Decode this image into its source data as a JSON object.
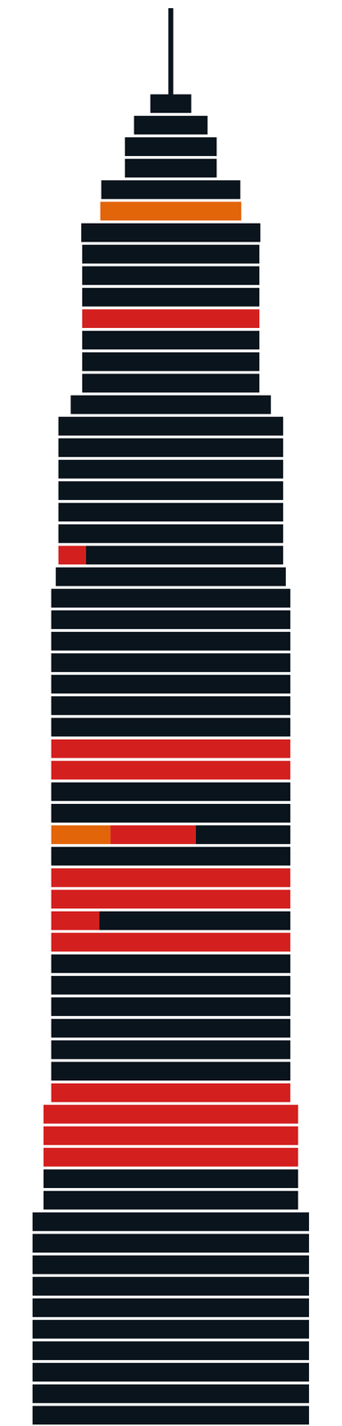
{
  "chart_data": {
    "type": "bar",
    "orientation": "horizontal",
    "stacked": true,
    "grid": false,
    "tick_labels": false,
    "xlim": [
      0,
      100
    ],
    "categories": [
      null,
      null,
      null,
      null,
      null,
      null,
      null,
      null,
      null,
      null,
      null,
      null,
      null,
      null,
      null,
      null,
      null,
      null,
      null,
      null,
      null,
      null,
      null,
      null,
      null,
      null,
      null,
      null,
      null,
      null,
      null,
      null,
      null,
      null,
      null,
      null,
      null,
      null,
      null,
      null,
      null,
      null,
      null,
      null,
      null,
      null,
      null,
      null,
      null,
      null,
      null,
      null,
      null,
      null,
      null,
      null,
      null,
      null,
      null,
      null,
      null,
      null
    ],
    "series": [
      {
        "color": "#e2650a",
        "values": [
          0,
          0,
          0,
          0,
          0,
          51.0,
          0,
          0,
          0,
          0,
          0,
          0,
          0,
          0,
          0,
          0,
          0,
          0,
          0,
          0,
          0,
          0,
          0,
          0,
          0,
          0,
          0,
          0,
          0,
          0,
          0,
          0,
          0,
          0,
          21.4,
          0,
          0,
          0,
          0,
          0,
          0,
          0,
          0,
          0,
          0,
          0,
          0,
          0,
          0,
          0,
          0,
          0,
          0,
          0,
          0,
          0,
          0,
          0,
          0,
          0,
          0,
          0
        ]
      },
      {
        "color": "#d3201f",
        "values": [
          0,
          0,
          0,
          0,
          0,
          0,
          0,
          0,
          0,
          0,
          64.1,
          0,
          0,
          0,
          0,
          0,
          0,
          0,
          0,
          0,
          0,
          9.9,
          0,
          0,
          0,
          0,
          0,
          0,
          0,
          0,
          86.5,
          86.5,
          0,
          0,
          30.9,
          0,
          86.5,
          86.5,
          17.4,
          86.5,
          0,
          0,
          0,
          0,
          0,
          0,
          86.5,
          92.1,
          92.1,
          92.1,
          0,
          0,
          0,
          0,
          0,
          0,
          0,
          0,
          0,
          0,
          0,
          0
        ]
      },
      {
        "color": "#0a141c",
        "values": [
          14.8,
          26.6,
          33.2,
          33.2,
          50.3,
          0,
          64.8,
          64.1,
          64.1,
          64.1,
          0,
          64.1,
          64.1,
          64.1,
          72.4,
          81.3,
          81.3,
          81.3,
          81.3,
          81.3,
          81.3,
          71.4,
          83.2,
          86.5,
          86.5,
          86.5,
          86.5,
          86.5,
          86.5,
          86.5,
          0,
          0,
          86.5,
          86.5,
          34.2,
          86.5,
          0,
          0,
          69.1,
          0,
          86.5,
          86.5,
          86.5,
          86.5,
          86.5,
          86.5,
          0,
          0,
          0,
          0,
          92.1,
          92.1,
          100,
          100,
          100,
          100,
          100,
          100,
          100,
          100,
          100,
          100
        ]
      }
    ]
  }
}
